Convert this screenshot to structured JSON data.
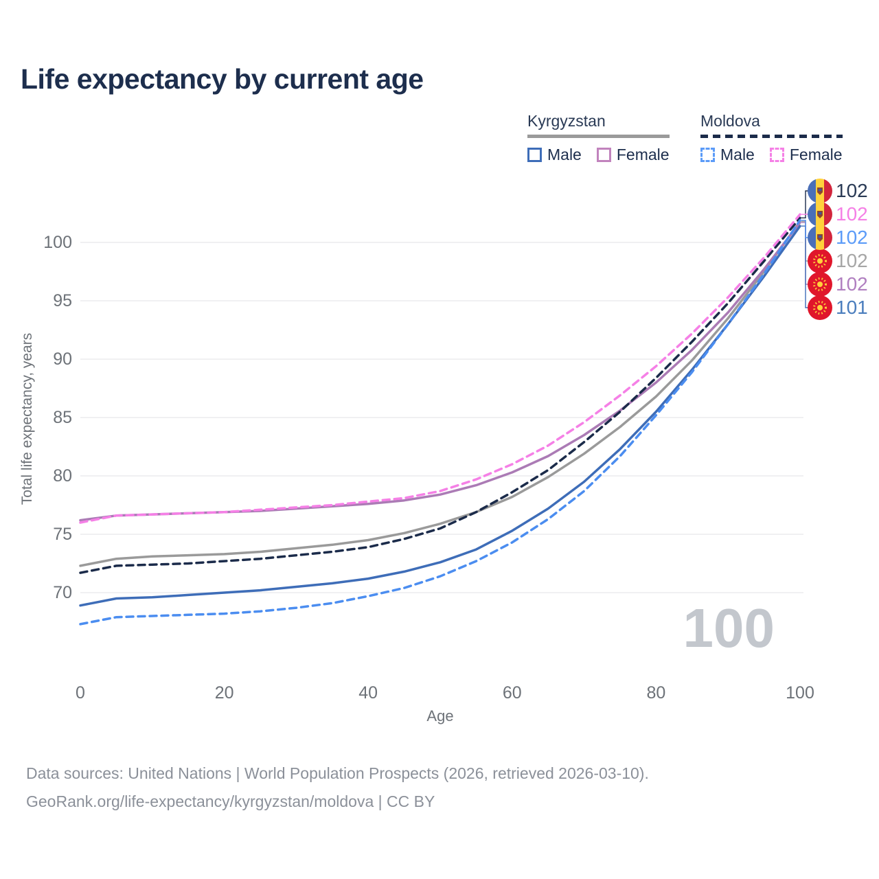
{
  "title": "Life expectancy by current age",
  "legend": {
    "groups": [
      {
        "name": "Kyrgyzstan",
        "swatch_color": "#9a9a9a",
        "swatch_style": "solid",
        "items": [
          {
            "label": "Male",
            "color": "#3e6db8",
            "style": "solid"
          },
          {
            "label": "Female",
            "color": "#c183bd",
            "style": "solid"
          }
        ]
      },
      {
        "name": "Moldova",
        "swatch_color": "#1b2b4a",
        "swatch_style": "dashed",
        "items": [
          {
            "label": "Male",
            "color": "#5b9bf8",
            "style": "dashed"
          },
          {
            "label": "Female",
            "color": "#f580e6",
            "style": "dashed"
          }
        ]
      }
    ]
  },
  "chart_data": {
    "type": "line",
    "title": "Life expectancy by current age",
    "xlabel": "Age",
    "ylabel": "Total life expectancy, years",
    "xticks": [
      0,
      20,
      40,
      60,
      80,
      100
    ],
    "yticks": [
      70,
      75,
      80,
      85,
      90,
      95,
      100
    ],
    "xlim": [
      0,
      100
    ],
    "ylim": [
      66,
      104
    ],
    "grid": "horizontal",
    "watermark": "100",
    "x": [
      0,
      5,
      10,
      15,
      20,
      25,
      30,
      35,
      40,
      45,
      50,
      55,
      60,
      65,
      70,
      75,
      80,
      85,
      90,
      95,
      100
    ],
    "series": [
      {
        "id": "kyrgyzstan-total",
        "name": "Kyrgyzstan",
        "country": "Kyrgyzstan",
        "sex": "Both",
        "color": "#9a9a9a",
        "style": "solid",
        "flag": "kyrgyzstan",
        "end_label": "102",
        "label_color": "#a6a6a6",
        "label_row": 3,
        "values": [
          72.3,
          72.9,
          73.1,
          73.2,
          73.3,
          73.5,
          73.8,
          74.1,
          74.5,
          75.1,
          75.9,
          76.9,
          78.2,
          79.9,
          81.9,
          84.2,
          86.8,
          89.9,
          93.5,
          97.5,
          101.8
        ]
      },
      {
        "id": "kyrgyzstan-female",
        "name": "Kyrgyzstan Female",
        "country": "Kyrgyzstan",
        "sex": "Female",
        "color": "#ab7bb5",
        "style": "solid",
        "flag": "kyrgyzstan",
        "end_label": "102",
        "label_color": "#b07fc0",
        "label_row": 4,
        "values": [
          76.2,
          76.6,
          76.7,
          76.8,
          76.9,
          77.0,
          77.2,
          77.4,
          77.6,
          77.9,
          78.4,
          79.2,
          80.3,
          81.7,
          83.5,
          85.6,
          88.0,
          90.8,
          94.0,
          97.7,
          101.7
        ]
      },
      {
        "id": "kyrgyzstan-male",
        "name": "Kyrgyzstan Male",
        "country": "Kyrgyzstan",
        "sex": "Male",
        "color": "#3e6db8",
        "style": "solid",
        "flag": "kyrgyzstan",
        "end_label": "101",
        "label_color": "#4a7dbd",
        "label_row": 5,
        "values": [
          68.9,
          69.5,
          69.6,
          69.8,
          70.0,
          70.2,
          70.5,
          70.8,
          71.2,
          71.8,
          72.6,
          73.7,
          75.3,
          77.2,
          79.5,
          82.3,
          85.5,
          89.1,
          93.0,
          97.1,
          101.4
        ]
      },
      {
        "id": "moldova-total",
        "name": "Moldova",
        "country": "Moldova",
        "sex": "Both",
        "color": "#1b2b4a",
        "style": "dashed",
        "flag": "moldova",
        "end_label": "102",
        "label_color": "#2a3a55",
        "label_row": 0,
        "values": [
          71.7,
          72.3,
          72.4,
          72.5,
          72.7,
          72.9,
          73.2,
          73.5,
          73.9,
          74.6,
          75.5,
          76.9,
          78.6,
          80.5,
          82.9,
          85.5,
          88.4,
          91.5,
          94.8,
          98.4,
          102.1
        ]
      },
      {
        "id": "moldova-male",
        "name": "Moldova Male",
        "country": "Moldova",
        "sex": "Male",
        "color": "#4b8df0",
        "style": "dashed",
        "flag": "moldova",
        "end_label": "102",
        "label_color": "#5b9bf8",
        "label_row": 2,
        "values": [
          67.3,
          67.9,
          68.0,
          68.1,
          68.2,
          68.4,
          68.7,
          69.1,
          69.7,
          70.4,
          71.4,
          72.7,
          74.3,
          76.3,
          78.7,
          81.7,
          85.2,
          88.9,
          93.0,
          97.3,
          101.9
        ]
      },
      {
        "id": "moldova-female",
        "name": "Moldova Female",
        "country": "Moldova",
        "sex": "Female",
        "color": "#f580e6",
        "style": "dashed",
        "flag": "moldova",
        "end_label": "102",
        "label_color": "#f580e6",
        "label_row": 1,
        "values": [
          76.0,
          76.6,
          76.7,
          76.8,
          76.9,
          77.1,
          77.3,
          77.5,
          77.8,
          78.1,
          78.7,
          79.7,
          81.0,
          82.6,
          84.6,
          86.9,
          89.4,
          92.2,
          95.3,
          98.7,
          102.4
        ]
      }
    ]
  },
  "footer": {
    "line1": "Data sources: United Nations | World Population Prospects (2026, retrieved 2026-03-10).",
    "line2": "GeoRank.org/life-expectancy/kyrgyzstan/moldova | CC BY"
  }
}
